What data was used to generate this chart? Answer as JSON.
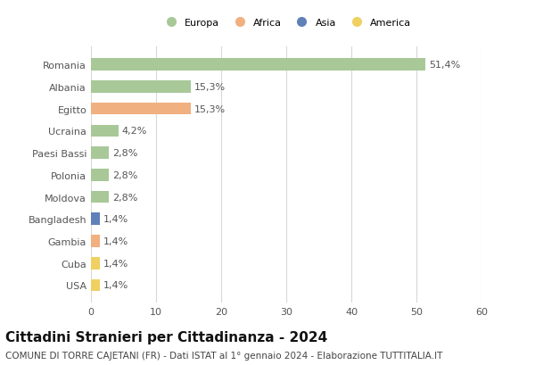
{
  "categories": [
    "USA",
    "Cuba",
    "Gambia",
    "Bangladesh",
    "Moldova",
    "Polonia",
    "Paesi Bassi",
    "Ucraina",
    "Egitto",
    "Albania",
    "Romania"
  ],
  "values": [
    1.4,
    1.4,
    1.4,
    1.4,
    2.8,
    2.8,
    2.8,
    4.2,
    15.3,
    15.3,
    51.4
  ],
  "labels": [
    "1,4%",
    "1,4%",
    "1,4%",
    "1,4%",
    "2,8%",
    "2,8%",
    "2,8%",
    "4,2%",
    "15,3%",
    "15,3%",
    "51,4%"
  ],
  "bar_colors": [
    "#f0d060",
    "#f0d060",
    "#f0b080",
    "#6080b8",
    "#a8c898",
    "#a8c898",
    "#a8c898",
    "#a8c898",
    "#f0b080",
    "#a8c898",
    "#a8c898"
  ],
  "legend_labels": [
    "Europa",
    "Africa",
    "Asia",
    "America"
  ],
  "legend_colors": [
    "#a8c898",
    "#f0b080",
    "#6080b8",
    "#f0d060"
  ],
  "title": "Cittadini Stranieri per Cittadinanza - 2024",
  "subtitle": "COMUNE DI TORRE CAJETANI (FR) - Dati ISTAT al 1° gennaio 2024 - Elaborazione TUTTITALIA.IT",
  "xlim": [
    0,
    60
  ],
  "xticks": [
    0,
    10,
    20,
    30,
    40,
    50,
    60
  ],
  "background_color": "#ffffff",
  "grid_color": "#d8d8d8",
  "bar_height": 0.55,
  "label_fontsize": 8.0,
  "tick_fontsize": 8.0,
  "title_fontsize": 11,
  "subtitle_fontsize": 7.5
}
